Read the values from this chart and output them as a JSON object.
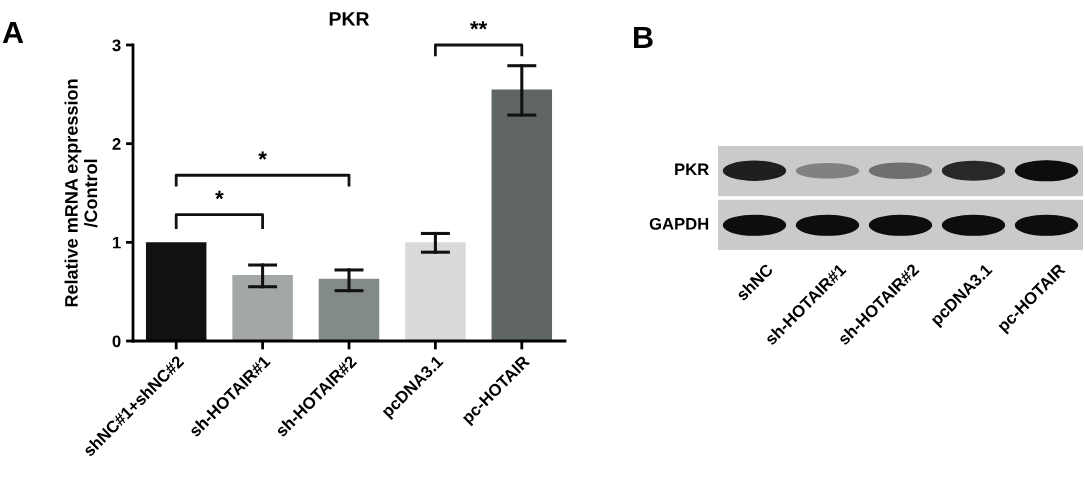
{
  "chart_data": [
    {
      "type": "bar",
      "title": "PKR",
      "ylabel": "Relative mRNA expression\n/Control",
      "categories": [
        "shNC#1+shNC#2",
        "sh-HOTAIR#1",
        "sh-HOTAIR#2",
        "pcDNA3.1",
        "pc-HOTAIR"
      ],
      "values": [
        1.0,
        0.67,
        0.63,
        1.0,
        2.55
      ],
      "errors": [
        null,
        [
          0.55,
          0.77
        ],
        [
          0.51,
          0.72
        ],
        [
          0.9,
          1.09
        ],
        [
          2.29,
          2.79
        ]
      ],
      "colors": [
        "#111111",
        "#a3a8a7",
        "#838b8a",
        "#d8dbda",
        "#5f6664"
      ],
      "ylim": [
        0,
        3
      ],
      "yticks": [
        0,
        1,
        2,
        3
      ],
      "grid": false,
      "annotations": [
        "A",
        "*",
        "*",
        "**"
      ]
    },
    {
      "type": "other",
      "categories": [
        "shNC",
        "sh-HOTAIR#1",
        "sh-HOTAIR#2",
        "pcDNA3.1",
        "pc-HOTAIR"
      ],
      "annotations": [
        "B",
        "PKR",
        "GAPDH"
      ]
    }
  ]
}
